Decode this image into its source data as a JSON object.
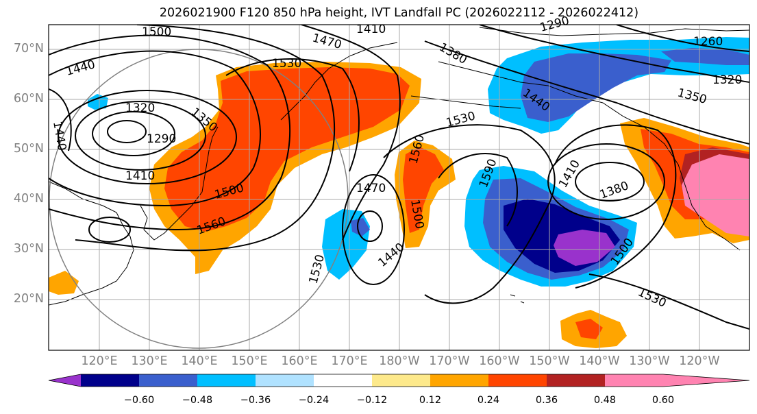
{
  "title": "2026021900 F120 850 hPa height, IVT Landfall PC (2026022112 - 2026022412)",
  "lat_labels": [
    "70°N",
    "60°N",
    "50°N",
    "40°N",
    "30°N",
    "20°N"
  ],
  "lon_labels": [
    "120°E",
    "130°E",
    "140°E",
    "150°E",
    "160°E",
    "170°E",
    "180°W",
    "170°W",
    "160°W",
    "150°W",
    "140°W",
    "130°W",
    "120°W"
  ],
  "colorbar": {
    "colors": [
      "#9932cc",
      "#00008b",
      "#3a5fcd",
      "#00bfff",
      "#b0e2ff",
      "#ffffff",
      "#fde98b",
      "#ffa500",
      "#ff4500",
      "#b22222",
      "#ff83b1"
    ],
    "labels": [
      "−0.60",
      "−0.48",
      "−0.36",
      "−0.24",
      "−0.12",
      "0.12",
      "0.24",
      "0.36",
      "0.48",
      "0.60"
    ]
  },
  "contour_labels": [
    "1500",
    "1470",
    "1410",
    "1290",
    "1380",
    "1260",
    "1440",
    "1320",
    "1350",
    "1530",
    "1320",
    "1410",
    "1290",
    "1350",
    "1530",
    "1560",
    "1590",
    "1410",
    "1380",
    "1470",
    "1500",
    "1560",
    "1500",
    "1440",
    "1530",
    "1500",
    "1530",
    "1440",
    "1440"
  ]
}
